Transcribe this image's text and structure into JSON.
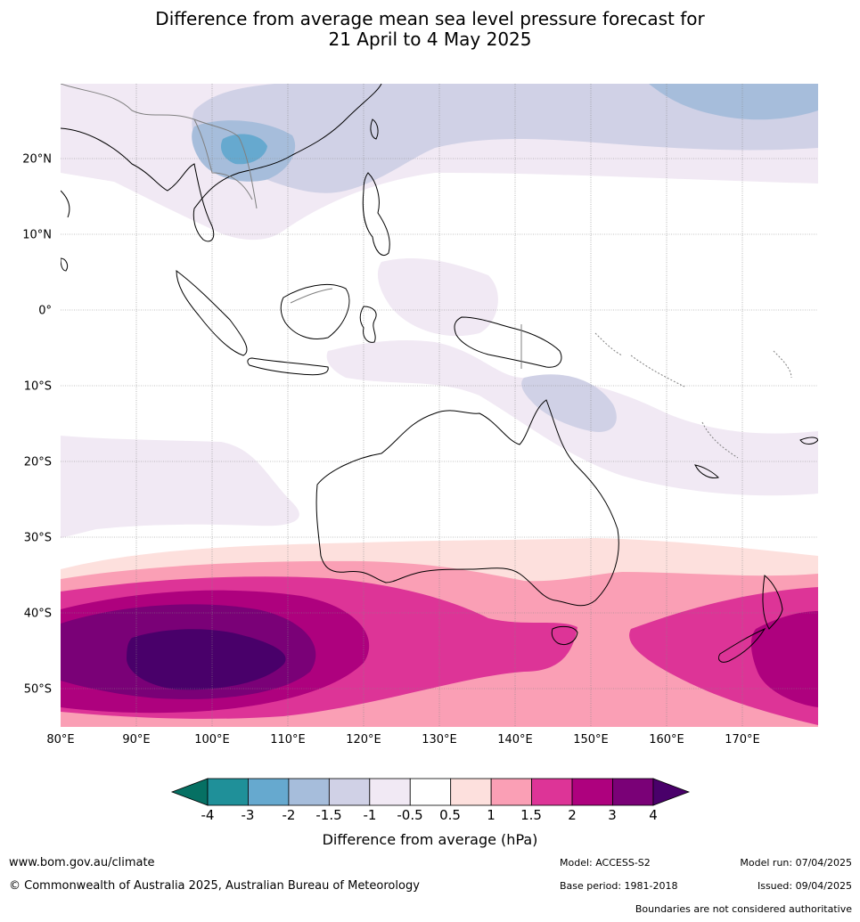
{
  "title": {
    "line1": "Difference from average mean sea level pressure forecast for",
    "line2": "21 April to 4 May 2025"
  },
  "map": {
    "lat_labels": [
      "20°N",
      "10°N",
      "0°",
      "10°S",
      "20°S",
      "30°S",
      "40°S",
      "50°S"
    ],
    "lon_labels": [
      "80°E",
      "90°E",
      "100°E",
      "110°E",
      "120°E",
      "130°E",
      "140°E",
      "150°E",
      "160°E",
      "170°E"
    ],
    "extent": {
      "lon": [
        80,
        180
      ],
      "lat": [
        -55,
        30
      ]
    },
    "gridlines": true
  },
  "colorbar": {
    "ticks": [
      "-4",
      "-3",
      "-2",
      "-1.5",
      "-1",
      "-0.5",
      "0.5",
      "1",
      "1.5",
      "2",
      "3",
      "4"
    ],
    "colors": [
      "#067063",
      "#1f9099",
      "#66a9cf",
      "#a6bddb",
      "#d0d1e6",
      "#f1e9f4",
      "#ffffff",
      "#fde0dd",
      "#fa9fb5",
      "#dd3497",
      "#ae017e",
      "#7a0177",
      "#49006a"
    ],
    "label": "Difference from average (hPa)"
  },
  "footer": {
    "website": "www.bom.gov.au/climate",
    "copyright": "© Commonwealth of Australia 2025, Australian Bureau of Meteorology",
    "model": "Model: ACCESS-S2",
    "base_period": "Base period: 1981-2018",
    "model_run": "Model run: 07/04/2025",
    "issued": "Issued: 09/04/2025",
    "disclaimer": "Boundaries are not considered authoritative"
  }
}
